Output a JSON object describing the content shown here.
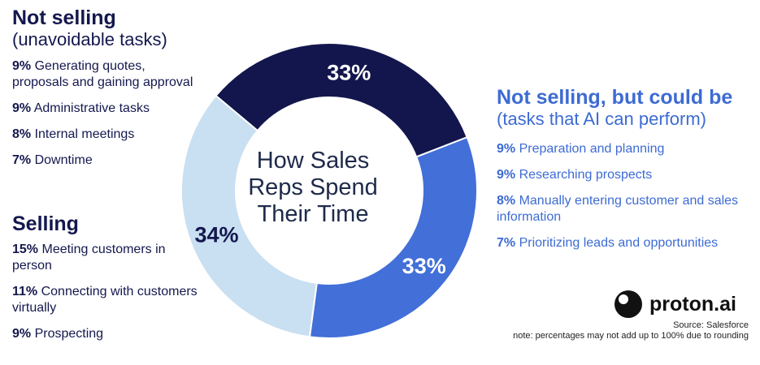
{
  "chart_data": {
    "type": "donut",
    "center_label": [
      "How Sales",
      "Reps Spend",
      "Their Time"
    ],
    "slices": [
      {
        "label": "33%",
        "value": 33,
        "color": "#13164d"
      },
      {
        "label": "33%",
        "value": 33,
        "color": "#426fd8"
      },
      {
        "label": "34%",
        "value": 34,
        "color": "#c9dff2"
      }
    ]
  },
  "groups": {
    "not_selling": {
      "title": "Not selling",
      "subtitle": "(unavoidable tasks)",
      "items": [
        {
          "pct": "9%",
          "text": "Generating quotes, proposals and gaining approval"
        },
        {
          "pct": "9%",
          "text": "Administrative tasks"
        },
        {
          "pct": "8%",
          "text": "Internal meetings"
        },
        {
          "pct": "7%",
          "text": "Downtime"
        }
      ]
    },
    "selling": {
      "title": "Selling",
      "items": [
        {
          "pct": "15%",
          "text": "Meeting customers in person"
        },
        {
          "pct": "11%",
          "text": "Connecting with customers virtually"
        },
        {
          "pct": "9%",
          "text": "Prospecting"
        }
      ]
    },
    "could_be": {
      "title": "Not selling, but could be",
      "subtitle": "(tasks that AI can perform)",
      "items": [
        {
          "pct": "9%",
          "text": "Preparation and planning"
        },
        {
          "pct": "9%",
          "text": "Researching prospects"
        },
        {
          "pct": "8%",
          "text": "Manually entering customer and sales information"
        },
        {
          "pct": "7%",
          "text": "Prioritizing leads and opportunities"
        }
      ]
    }
  },
  "brand": {
    "name": "proton.ai"
  },
  "footer": {
    "source": "Source: Salesforce",
    "note": "note: percentages may not add up to 100% due to rounding"
  }
}
